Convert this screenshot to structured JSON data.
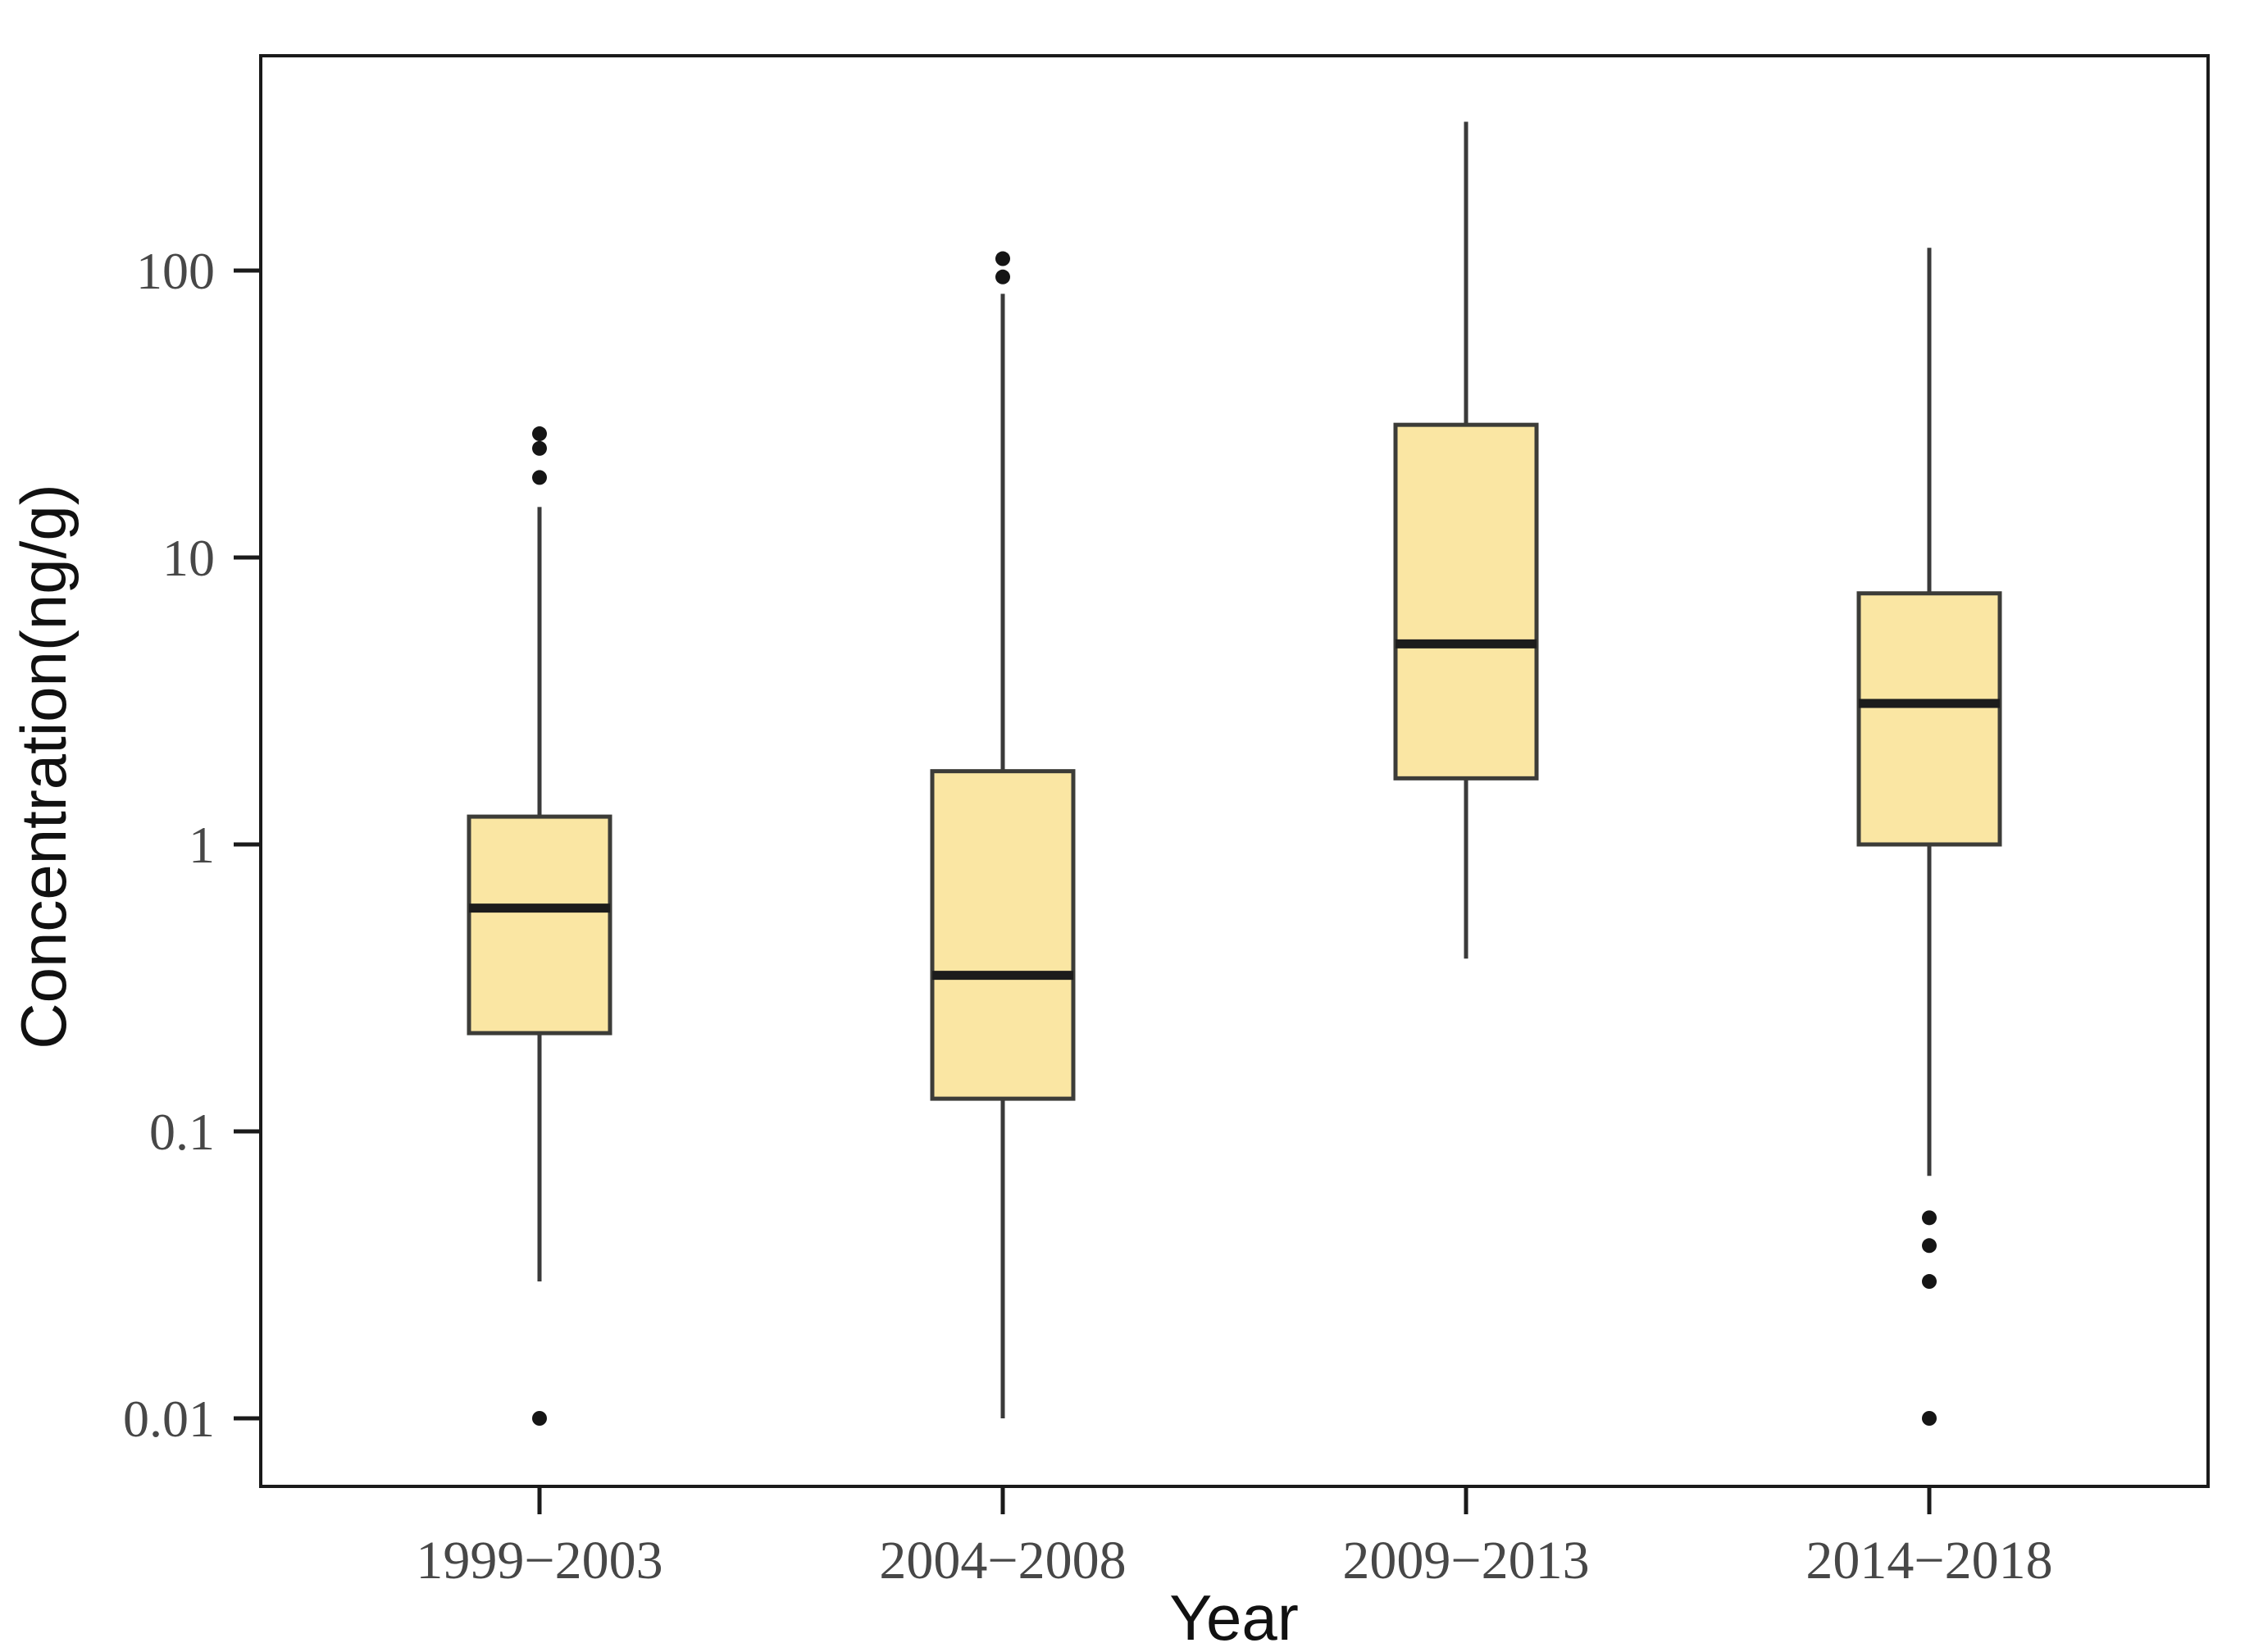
{
  "chart_data": {
    "type": "boxplot",
    "title": "",
    "xlabel": "Year",
    "ylabel": "Concentration(ng/g)",
    "y_scale": "log10",
    "grid": false,
    "legend": false,
    "ylim": [
      0.006,
      560
    ],
    "y_ticks": [
      {
        "label": "100",
        "value": 100
      },
      {
        "label": "10",
        "value": 10
      },
      {
        "label": "1",
        "value": 1
      },
      {
        "label": "0.1",
        "value": 0.1
      },
      {
        "label": "0.01",
        "value": 0.01
      }
    ],
    "categories": [
      "1999−2003",
      "2004−2008",
      "2009−2013",
      "2014−2018"
    ],
    "series": [
      {
        "category": "1999−2003",
        "whisker_low": 0.03,
        "q1": 0.22,
        "median": 0.6,
        "q3": 1.25,
        "whisker_high": 15,
        "outliers": [
          27,
          24,
          19,
          0.01
        ]
      },
      {
        "category": "2004−2008",
        "whisker_low": 0.01,
        "q1": 0.13,
        "median": 0.35,
        "q3": 1.8,
        "whisker_high": 83,
        "outliers": [
          110,
          95
        ]
      },
      {
        "category": "2009−2013",
        "whisker_low": 0.4,
        "q1": 1.7,
        "median": 5,
        "q3": 29,
        "whisker_high": 330,
        "outliers": []
      },
      {
        "category": "2014−2018",
        "whisker_low": 0.07,
        "q1": 1.0,
        "median": 3.1,
        "q3": 7.5,
        "whisker_high": 120,
        "outliers": [
          0.05,
          0.04,
          0.03,
          0.01
        ]
      }
    ],
    "colors": {
      "box_fill": "#FAE6A3",
      "box_border": "#3c3c38",
      "median": "#1c1c1c",
      "whisker": "#3a3a3a",
      "outlier": "#151515",
      "tick": "#1a1a1a",
      "panel_border": "#1a1a1a",
      "tick_label": "#474747",
      "axis_title": "#111111"
    }
  }
}
